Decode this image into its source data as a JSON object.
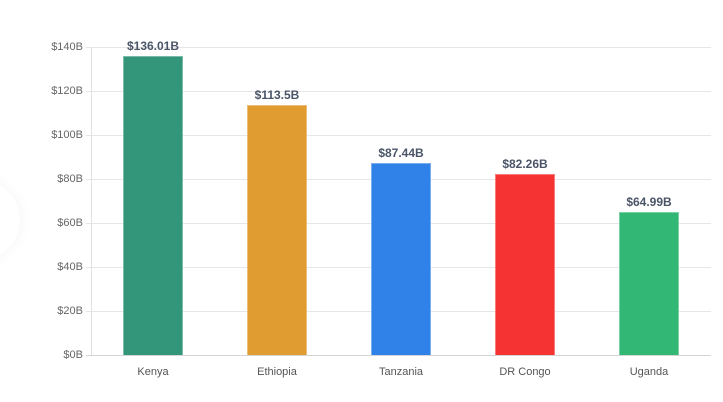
{
  "chart_data": {
    "type": "bar",
    "title": "",
    "xlabel": "",
    "ylabel": "",
    "categories": [
      "Kenya",
      "Ethiopia",
      "Tanzania",
      "DR Congo",
      "Uganda"
    ],
    "values": [
      136.01,
      113.5,
      87.44,
      82.26,
      64.99
    ],
    "value_labels": [
      "$136.01B",
      "$113.5B",
      "$87.44B",
      "$82.26B",
      "$64.99B"
    ],
    "colors": [
      "#33957a",
      "#e09c31",
      "#3182e8",
      "#f53333",
      "#32b874"
    ],
    "ylim": [
      0,
      140
    ],
    "yticks": [
      0,
      20,
      40,
      60,
      80,
      100,
      120,
      140
    ],
    "ytick_labels": [
      "$0B",
      "$20B",
      "$40B",
      "$60B",
      "$80B",
      "$100B",
      "$120B",
      "$140B"
    ],
    "grid": true,
    "legend": "none"
  }
}
